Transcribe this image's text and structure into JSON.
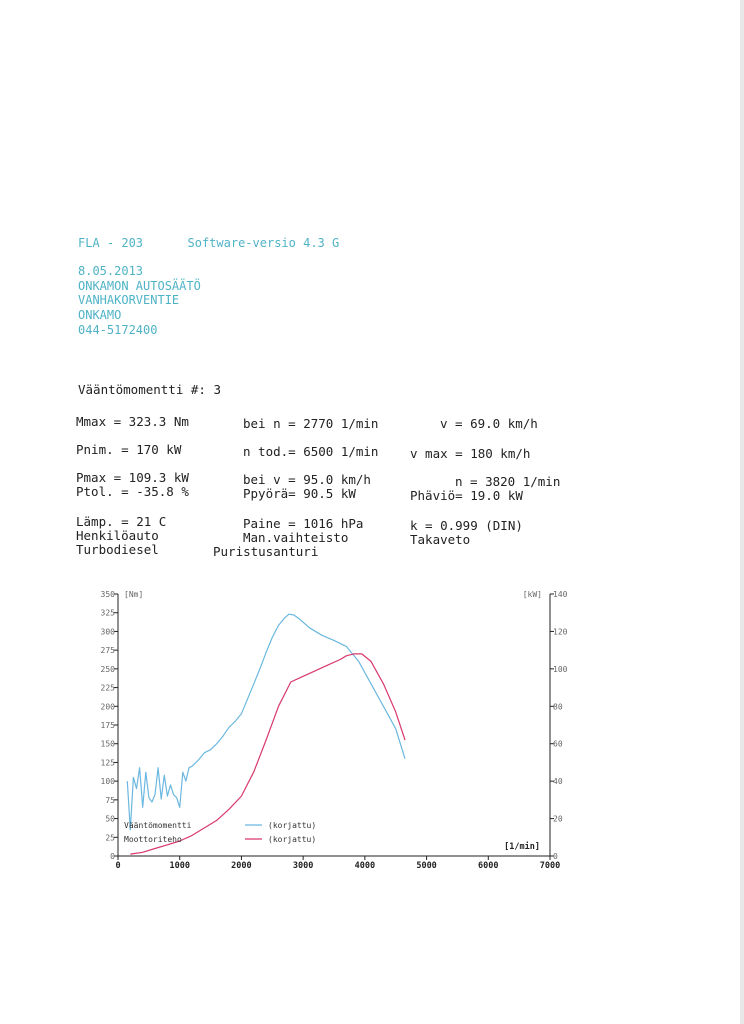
{
  "header": {
    "device": "FLA - 203",
    "software": "Software-versio  4.3 G",
    "date": "8.05.2013",
    "company": "ONKAMON AUTOSÄÄTÖ",
    "street": "VANHAKORVENTIE",
    "city": "ONKAMO",
    "phone": "044-5172400"
  },
  "report": {
    "title": "Vääntömomentti  #: 3",
    "rows": [
      [
        "Mmax  =  323.3 Nm",
        "bei n =   2770 1/min",
        "v =   69.0 km/h"
      ],
      [
        "Pnim. =    170 kW",
        "n tod.=   6500 1/min",
        "v max =    180 km/h"
      ],
      [
        "Pmax  =  109.3 kW",
        "bei v =   95.0 km/h",
        "n =   3820 1/min"
      ],
      [
        "Ptol. =  -35.8 %",
        "Ppyörä=   90.5 kW",
        "Phäviö=   19.0 kW"
      ],
      [
        "Lämp. =   21   C",
        "Paine = 1016   hPa",
        "k     =  0.999 (DIN)"
      ],
      [
        "Henkilöauto",
        "Man.vaihteisto",
        "Takaveto"
      ],
      [
        "Turbodiesel",
        "Puristusanturi",
        ""
      ]
    ]
  },
  "chart_data": {
    "type": "line",
    "x_unit": "[1/min]",
    "y_left_unit": "[Nm]",
    "y_right_unit": "[kW]",
    "xlim": [
      0,
      7000
    ],
    "ylim_left": [
      0,
      350
    ],
    "ylim_right": [
      0,
      140
    ],
    "x_ticks": [
      "0",
      "1000",
      "2000",
      "3000",
      "4000",
      "5000",
      "6000",
      "7000"
    ],
    "y_left_ticks": [
      "0",
      "25",
      "50",
      "75",
      "100",
      "125",
      "150",
      "175",
      "200",
      "225",
      "250",
      "275",
      "300",
      "325",
      "350"
    ],
    "y_right_ticks": [
      "0",
      "20",
      "40",
      "60",
      "80",
      "100",
      "120",
      "140"
    ],
    "legend": [
      {
        "label": "Vääntömomentti",
        "suffix": "(korjattu)",
        "color": "#6cb8e0"
      },
      {
        "label": "Moottoriteho",
        "suffix": "(korjattu)",
        "color": "#d9386a"
      }
    ],
    "series": [
      {
        "name": "Vääntömomentti",
        "axis": "left",
        "color": "#6cb8e0",
        "x": [
          150,
          200,
          250,
          300,
          350,
          400,
          450,
          500,
          550,
          600,
          650,
          700,
          750,
          800,
          850,
          900,
          950,
          1000,
          1050,
          1100,
          1150,
          1200,
          1300,
          1400,
          1500,
          1600,
          1700,
          1800,
          1900,
          2000,
          2100,
          2200,
          2300,
          2400,
          2500,
          2600,
          2700,
          2770,
          2850,
          2950,
          3100,
          3300,
          3500,
          3700,
          3900,
          4100,
          4300,
          4500,
          4650
        ],
        "y": [
          100,
          35,
          105,
          90,
          118,
          65,
          112,
          78,
          72,
          82,
          118,
          76,
          108,
          80,
          95,
          82,
          78,
          65,
          112,
          100,
          118,
          120,
          128,
          138,
          142,
          150,
          160,
          172,
          180,
          190,
          210,
          230,
          250,
          272,
          292,
          308,
          318,
          323,
          322,
          316,
          305,
          295,
          288,
          280,
          260,
          230,
          200,
          170,
          130
        ]
      },
      {
        "name": "Moottoriteho",
        "axis": "right",
        "color": "#d9386a",
        "x": [
          200,
          400,
          600,
          800,
          1000,
          1200,
          1400,
          1600,
          1800,
          2000,
          2200,
          2400,
          2600,
          2800,
          3000,
          3200,
          3400,
          3600,
          3700,
          3820,
          3950,
          4100,
          4300,
          4500,
          4650
        ],
        "y": [
          1,
          2,
          4,
          6,
          8,
          11,
          15,
          19,
          25,
          32,
          45,
          62,
          80,
          93,
          96,
          99,
          102,
          105,
          107,
          108,
          108,
          104,
          92,
          77,
          62
        ]
      }
    ]
  }
}
